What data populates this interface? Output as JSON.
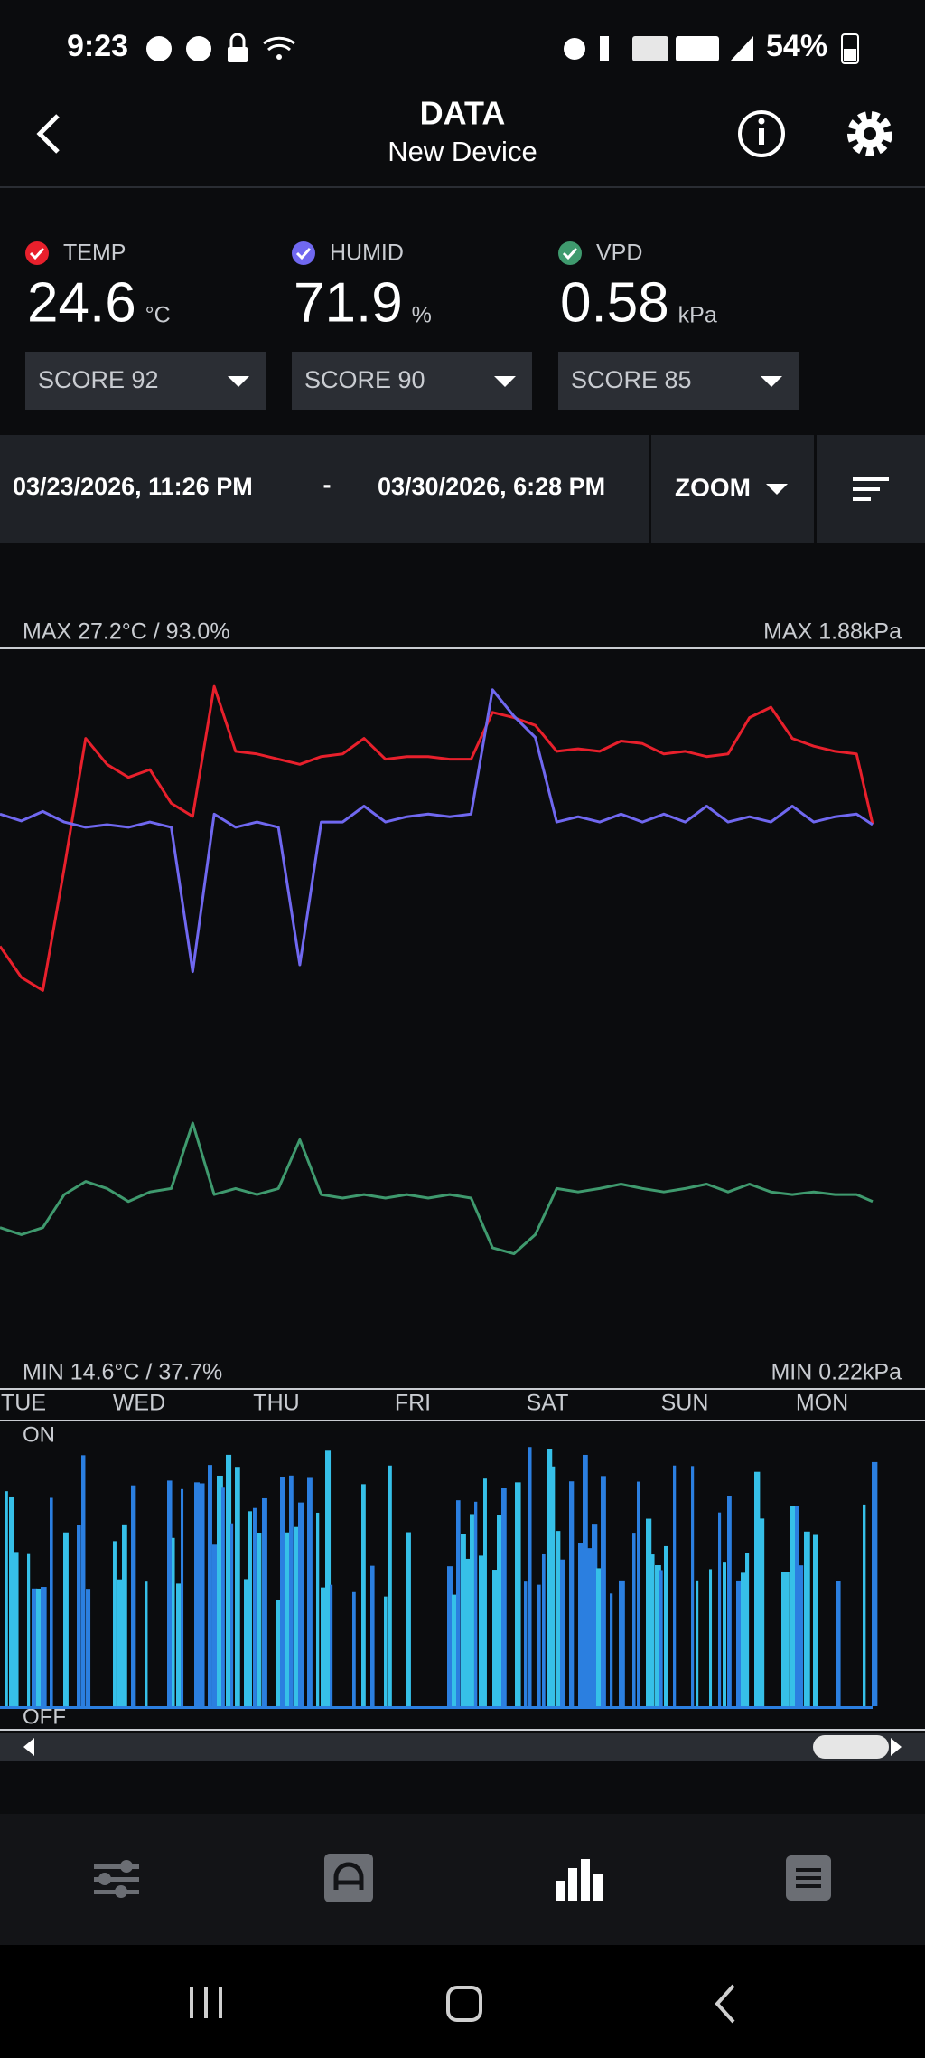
{
  "status_bar": {
    "time": "9:23",
    "battery": "54%"
  },
  "header": {
    "title": "DATA",
    "subtitle": "New Device"
  },
  "readings": [
    {
      "label": "TEMP",
      "value": "24.6",
      "unit": "°C",
      "score": "SCORE 92"
    },
    {
      "label": "HUMID",
      "value": "71.9",
      "unit": "%",
      "score": "SCORE 90"
    },
    {
      "label": "VPD",
      "value": "0.58",
      "unit": "kPa",
      "score": "SCORE 85"
    }
  ],
  "date_range": {
    "start": "03/23/2026, 11:26 PM",
    "separator": "-",
    "end": "03/30/2026, 6:28 PM",
    "zoom": "ZOOM"
  },
  "chart_data": {
    "type": "line",
    "max_left": "MAX 27.2°C / 93.0%",
    "max_right": "MAX 1.88kPa",
    "min_left": "MIN 14.6°C / 37.7%",
    "min_right": "MIN 0.22kPa",
    "categories": [
      "TUE",
      "WED",
      "THU",
      "FRI",
      "SAT",
      "SUN",
      "MON"
    ],
    "xlim": [
      0,
      163
    ],
    "x": [
      0,
      4,
      8,
      12,
      16,
      20,
      24,
      28,
      32,
      36,
      40,
      44,
      48,
      52,
      56,
      60,
      64,
      68,
      72,
      76,
      80,
      84,
      88,
      92,
      96,
      100,
      104,
      108,
      112,
      116,
      120,
      124,
      128,
      132,
      136,
      140,
      144,
      148,
      152,
      156,
      160,
      163
    ],
    "series": [
      {
        "name": "TEMP",
        "color": "#e8202c",
        "ylim": [
          0,
          28.5
        ],
        "values": [
          17.0,
          15.8,
          15.3,
          20.0,
          25.0,
          24.0,
          23.5,
          23.8,
          22.5,
          22.0,
          27.0,
          24.5,
          24.4,
          24.2,
          24.0,
          24.3,
          24.4,
          25.0,
          24.2,
          24.3,
          24.3,
          24.2,
          24.2,
          26.0,
          25.8,
          25.5,
          24.5,
          24.6,
          24.5,
          24.9,
          24.8,
          24.4,
          24.5,
          24.3,
          24.4,
          25.8,
          26.2,
          25.0,
          24.7,
          24.5,
          24.4,
          21.7
        ]
      },
      {
        "name": "HUMID",
        "color": "#7068f0",
        "ylim": [
          -40,
          100
        ],
        "values": [
          68.5,
          67.2,
          69,
          67,
          66,
          66.5,
          66,
          67,
          66,
          38.7,
          68.5,
          66,
          67,
          66,
          40,
          67,
          67,
          70,
          67,
          68,
          68.5,
          68,
          68.5,
          92,
          87,
          83,
          67,
          68,
          67,
          68.5,
          67,
          68.5,
          67,
          70,
          67,
          68,
          67,
          70,
          67,
          68,
          68.5,
          66.5
        ]
      },
      {
        "name": "VPD",
        "color": "#3f9a6e",
        "ylim": [
          -1.25,
          7.25
        ],
        "values": [
          0.59,
          0.51,
          0.59,
          0.97,
          1.12,
          1.04,
          0.89,
          1.0,
          1.04,
          1.79,
          0.97,
          1.04,
          0.97,
          1.04,
          1.6,
          0.97,
          0.93,
          0.97,
          0.93,
          0.97,
          0.93,
          0.97,
          0.93,
          0.36,
          0.29,
          0.51,
          1.04,
          1.0,
          1.04,
          1.09,
          1.04,
          1.0,
          1.04,
          1.09,
          1.0,
          1.09,
          1.0,
          0.97,
          1.0,
          0.97,
          0.97,
          0.89
        ]
      }
    ]
  },
  "fan_chart": {
    "on": "ON",
    "off": "OFF"
  }
}
